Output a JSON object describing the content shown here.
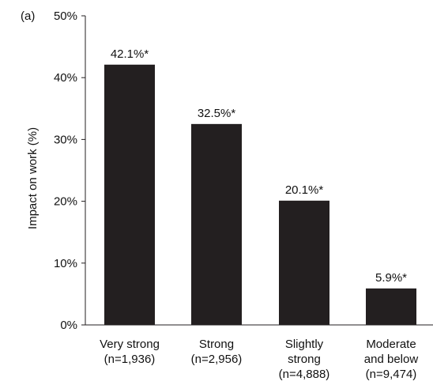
{
  "chart_data": {
    "type": "bar",
    "panel_label": "(a)",
    "title": "",
    "xlabel": "",
    "ylabel": "Impact on work (%)",
    "ylim": [
      0,
      50
    ],
    "yticks": [
      "0%",
      "10%",
      "20%",
      "30%",
      "40%",
      "50%"
    ],
    "categories": [
      [
        "Very strong",
        "(n=1,936)"
      ],
      [
        "Strong",
        "(n=2,956)"
      ],
      [
        "Slightly",
        "strong",
        "(n=4,888)"
      ],
      [
        "Moderate",
        "and below",
        "(n=9,474)"
      ]
    ],
    "values": [
      42.1,
      32.5,
      20.1,
      5.9
    ],
    "data_labels": [
      "42.1%*",
      "32.5%*",
      "20.1%*",
      "5.9%*"
    ],
    "grid": false,
    "bar_color": "#231f20"
  }
}
